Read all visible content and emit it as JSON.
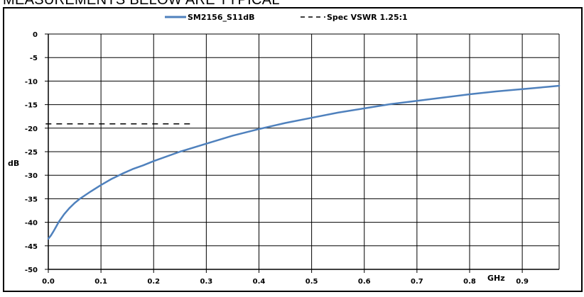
{
  "page": {
    "heading": "MEASUREMENTS BELOW ARE TYPICAL"
  },
  "chart_data": {
    "type": "line",
    "title": "",
    "xlabel": "GHz",
    "ylabel": "dB",
    "xlim": [
      0.0,
      0.97
    ],
    "ylim": [
      -50,
      0
    ],
    "x_ticks": [
      "0.0",
      "0.1",
      "0.2",
      "0.3",
      "0.4",
      "0.5",
      "0.6",
      "0.7",
      "0.8",
      "0.9"
    ],
    "y_ticks": [
      "0",
      "-5",
      "-10",
      "-15",
      "-20",
      "-25",
      "-30",
      "-35",
      "-40",
      "-45",
      "-50"
    ],
    "grid": true,
    "legend_position": "top-center",
    "series": [
      {
        "name": "SM2156_S11dB",
        "style": "solid",
        "color": "#4f81bd",
        "x": [
          0.0,
          0.005,
          0.01,
          0.015,
          0.02,
          0.03,
          0.04,
          0.05,
          0.06,
          0.08,
          0.1,
          0.12,
          0.14,
          0.16,
          0.18,
          0.2,
          0.25,
          0.3,
          0.35,
          0.4,
          0.45,
          0.5,
          0.55,
          0.6,
          0.65,
          0.7,
          0.75,
          0.8,
          0.85,
          0.9,
          0.95,
          0.97
        ],
        "y": [
          -43.5,
          -42.8,
          -41.9,
          -40.9,
          -39.9,
          -38.3,
          -37.0,
          -35.9,
          -35.0,
          -33.5,
          -32.1,
          -30.8,
          -29.7,
          -28.7,
          -27.9,
          -27.0,
          -25.0,
          -23.3,
          -21.6,
          -20.2,
          -18.9,
          -17.8,
          -16.7,
          -15.8,
          -14.9,
          -14.2,
          -13.5,
          -12.8,
          -12.2,
          -11.7,
          -11.2,
          -11.0
        ]
      },
      {
        "name": "Spec VSWR 1.25:1",
        "style": "dashed",
        "color": "#000000",
        "x": [
          -0.005,
          0.27
        ],
        "y": [
          -19.1,
          -19.1
        ]
      }
    ]
  }
}
